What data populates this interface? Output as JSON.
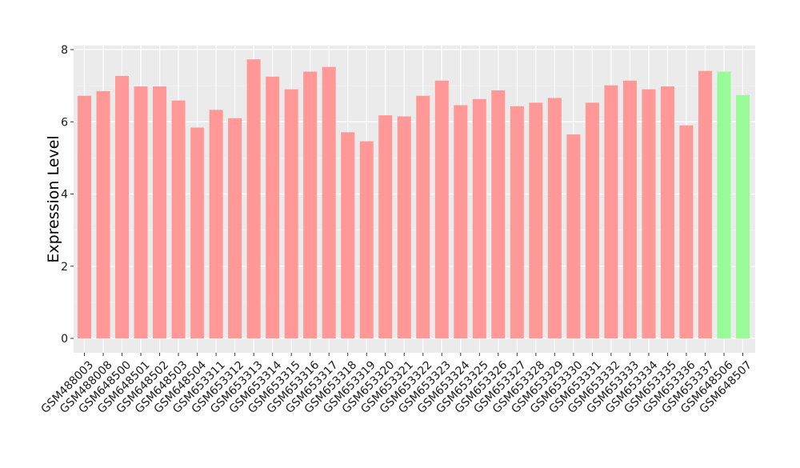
{
  "chart_data": {
    "type": "bar",
    "title": "",
    "xlabel": "",
    "ylabel": "Expression Level",
    "ylim": [
      0,
      8
    ],
    "yticks": [
      "0",
      "2",
      "4",
      "6",
      "8"
    ],
    "grid": true,
    "legend": "none",
    "colors": {
      "panel_background": "#ebebeb",
      "grid_major": "#ffffff",
      "group_a": "#ff9896",
      "group_b": "#98fb98"
    },
    "categories": [
      "GSM488003",
      "GSM488008",
      "GSM648500",
      "GSM648501",
      "GSM648502",
      "GSM648503",
      "GSM648504",
      "GSM653311",
      "GSM653312",
      "GSM653313",
      "GSM653314",
      "GSM653315",
      "GSM653316",
      "GSM653317",
      "GSM653318",
      "GSM653319",
      "GSM653320",
      "GSM653321",
      "GSM653322",
      "GSM653323",
      "GSM653324",
      "GSM653325",
      "GSM653326",
      "GSM653327",
      "GSM653328",
      "GSM653329",
      "GSM653330",
      "GSM653331",
      "GSM653332",
      "GSM653333",
      "GSM653334",
      "GSM653335",
      "GSM653336",
      "GSM653337",
      "GSM648506",
      "GSM648507"
    ],
    "values": [
      6.72,
      6.85,
      7.27,
      6.98,
      6.98,
      6.59,
      5.84,
      6.33,
      6.1,
      7.73,
      7.25,
      6.9,
      7.39,
      7.52,
      5.71,
      5.46,
      6.18,
      6.15,
      6.72,
      7.14,
      6.46,
      6.63,
      6.87,
      6.43,
      6.53,
      6.66,
      5.65,
      6.53,
      7.01,
      7.14,
      6.9,
      6.98,
      5.9,
      7.41,
      7.39,
      6.74
    ],
    "groups": [
      "a",
      "a",
      "a",
      "a",
      "a",
      "a",
      "a",
      "a",
      "a",
      "a",
      "a",
      "a",
      "a",
      "a",
      "a",
      "a",
      "a",
      "a",
      "a",
      "a",
      "a",
      "a",
      "a",
      "a",
      "a",
      "a",
      "a",
      "a",
      "a",
      "a",
      "a",
      "a",
      "a",
      "a",
      "b",
      "b"
    ]
  }
}
